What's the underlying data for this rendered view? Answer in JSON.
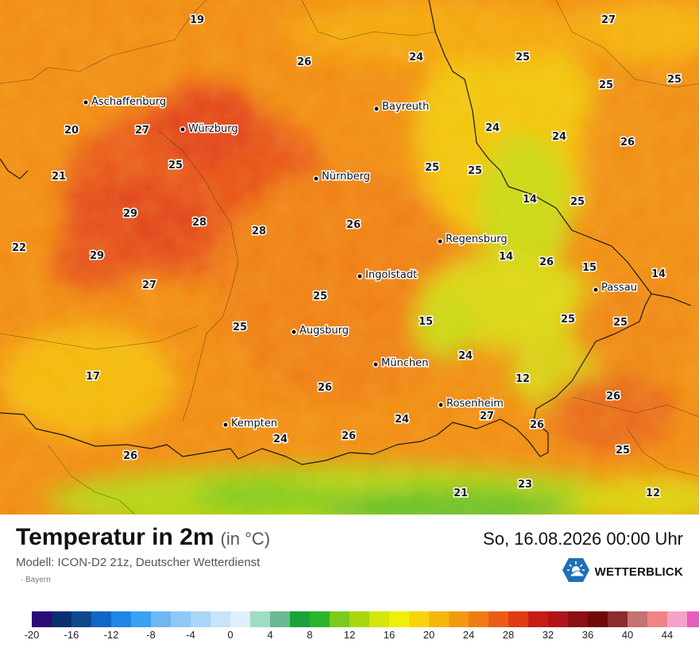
{
  "map": {
    "values": [
      {
        "id": "v1",
        "text": "19"
      },
      {
        "id": "v2",
        "text": "27"
      },
      {
        "id": "v3",
        "text": "26"
      },
      {
        "id": "v4",
        "text": "24"
      },
      {
        "id": "v5",
        "text": "25"
      },
      {
        "id": "v6",
        "text": "25"
      },
      {
        "id": "v7",
        "text": "25"
      },
      {
        "id": "v8",
        "text": "20"
      },
      {
        "id": "v9",
        "text": "27"
      },
      {
        "id": "v10",
        "text": "24"
      },
      {
        "id": "v11",
        "text": "24"
      },
      {
        "id": "v12",
        "text": "26"
      },
      {
        "id": "v13",
        "text": "21"
      },
      {
        "id": "v14",
        "text": "25"
      },
      {
        "id": "v15",
        "text": "25"
      },
      {
        "id": "v16",
        "text": "25"
      },
      {
        "id": "v17",
        "text": "14"
      },
      {
        "id": "v18",
        "text": "25"
      },
      {
        "id": "v19",
        "text": "29"
      },
      {
        "id": "v20",
        "text": "28"
      },
      {
        "id": "v21",
        "text": "28"
      },
      {
        "id": "v22",
        "text": "26"
      },
      {
        "id": "v23",
        "text": "22"
      },
      {
        "id": "v24",
        "text": "29"
      },
      {
        "id": "v25",
        "text": "14"
      },
      {
        "id": "v26",
        "text": "26"
      },
      {
        "id": "v27",
        "text": "15"
      },
      {
        "id": "v28",
        "text": "14"
      },
      {
        "id": "v29",
        "text": "27"
      },
      {
        "id": "v30",
        "text": "25"
      },
      {
        "id": "v31",
        "text": "25"
      },
      {
        "id": "v32",
        "text": "25"
      },
      {
        "id": "v33",
        "text": "15"
      },
      {
        "id": "v34",
        "text": "25"
      },
      {
        "id": "v35",
        "text": "24"
      },
      {
        "id": "v36",
        "text": "17"
      },
      {
        "id": "v37",
        "text": "26"
      },
      {
        "id": "v38",
        "text": "12"
      },
      {
        "id": "v39",
        "text": "26"
      },
      {
        "id": "v40",
        "text": "27"
      },
      {
        "id": "v41",
        "text": "24"
      },
      {
        "id": "v42",
        "text": "24"
      },
      {
        "id": "v43",
        "text": "26"
      },
      {
        "id": "v44",
        "text": "26"
      },
      {
        "id": "v45",
        "text": "26"
      },
      {
        "id": "v46",
        "text": "25"
      },
      {
        "id": "v47",
        "text": "23"
      },
      {
        "id": "v48",
        "text": "21"
      },
      {
        "id": "v49",
        "text": "12"
      }
    ],
    "cities": [
      {
        "id": "c1",
        "name": "Aschaffenburg"
      },
      {
        "id": "c2",
        "name": "Würzburg"
      },
      {
        "id": "c3",
        "name": "Bayreuth"
      },
      {
        "id": "c4",
        "name": "Nürnberg"
      },
      {
        "id": "c5",
        "name": "Regensburg"
      },
      {
        "id": "c6",
        "name": "Ingolstadt"
      },
      {
        "id": "c7",
        "name": "Passau"
      },
      {
        "id": "c8",
        "name": "Augsburg"
      },
      {
        "id": "c9",
        "name": "München"
      },
      {
        "id": "c10",
        "name": "Rosenheim"
      },
      {
        "id": "c11",
        "name": "Kempten"
      }
    ]
  },
  "footer": {
    "title": "Temperatur in 2m",
    "unit": "(in °C)",
    "subtitle": "Modell: ICON-D2 21z, Deutscher Wetterdienst",
    "region": "· Bayern",
    "datetime": "So, 16.08.2026 00:00 Uhr",
    "brand": "WETTERBLICK",
    "brand_icon": "sun-cloud-icon"
  },
  "scale": {
    "colors": [
      "#2b0a7a",
      "#0a2f6e",
      "#0c4a8c",
      "#0f66c4",
      "#1f86ea",
      "#3aa0f2",
      "#6db7f5",
      "#8ec8f7",
      "#aad6f8",
      "#c6e4fa",
      "#dff0fc",
      "#9fdcc2",
      "#6cb894",
      "#19a33a",
      "#2db52a",
      "#7acb1d",
      "#a8d70f",
      "#d4e60a",
      "#f0ef08",
      "#f5d509",
      "#f4b70a",
      "#f19a0e",
      "#ee7c12",
      "#ea5c14",
      "#e23a14",
      "#c81b16",
      "#b0131a",
      "#8c0f12",
      "#6e0a0a",
      "#8a2d2d",
      "#c47272",
      "#f08585",
      "#f4a2c9",
      "#e85ec0"
    ],
    "ticks": [
      "-20",
      "-16",
      "-12",
      "-8",
      "-4",
      "0",
      "4",
      "8",
      "12",
      "16",
      "20",
      "24",
      "28",
      "32",
      "36",
      "40",
      "44"
    ]
  }
}
